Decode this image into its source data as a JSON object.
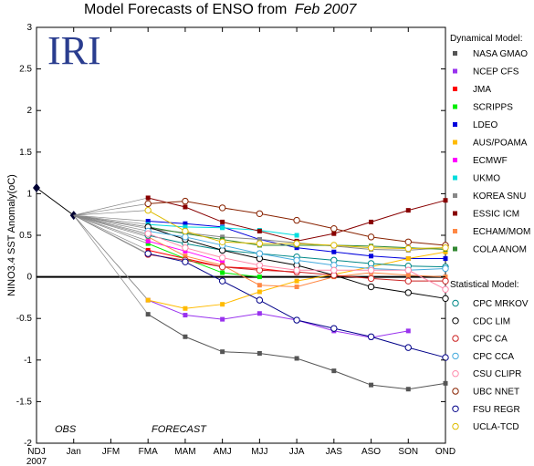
{
  "chart_data": {
    "type": "line",
    "title": "Model Forecasts of ENSO from",
    "title_date": "Feb 2007",
    "logo": "IRI",
    "ylabel": "NINO3.4 SST Anomaly(",
    "ylabel_unit": "oC",
    "ylabel_close": ")",
    "ylim": [
      -2,
      3
    ],
    "yticks": [
      "-2",
      "-1.5",
      "-1",
      "-0.5",
      "0",
      "0.5",
      "1",
      "1.5",
      "2",
      "2.5",
      "3"
    ],
    "ytick_values": [
      -2,
      -1.5,
      -1,
      -0.5,
      0,
      0.5,
      1,
      1.5,
      2,
      2.5,
      3
    ],
    "categories": [
      "NDJ",
      "Jan",
      "JFM",
      "FMA",
      "MAM",
      "AMJ",
      "MJJ",
      "JJA",
      "JAS",
      "ASO",
      "SON",
      "OND"
    ],
    "year_label": "2007",
    "obs_label": "OBS",
    "forecast_label": "FORECAST",
    "observed": [
      1.07,
      0.74
    ],
    "dynamical_header": "Dynamical Model:",
    "statistical_header": "Statistical Model:",
    "dynamical_models": [
      {
        "name": "NASA GMAO",
        "color": "#555555",
        "values": [
          -0.45,
          -0.72,
          -0.9,
          -0.92,
          -0.98,
          -1.13,
          -1.3,
          -1.35,
          -1.28
        ]
      },
      {
        "name": "NCEP CFS",
        "color": "#9933ee",
        "values": [
          -0.28,
          -0.46,
          -0.51,
          -0.44,
          -0.52,
          -0.65,
          -0.73,
          -0.65,
          null
        ]
      },
      {
        "name": "JMA",
        "color": "#ff0000",
        "values": [
          0.32,
          0.22,
          0.12,
          0.1,
          0.05,
          null,
          null,
          null,
          null
        ]
      },
      {
        "name": "SCRIPPS",
        "color": "#00ee00",
        "values": [
          0.4,
          0.22,
          0.05,
          0.0,
          null,
          null,
          null,
          null,
          null
        ]
      },
      {
        "name": "LDEO",
        "color": "#0000dd",
        "values": [
          0.67,
          0.64,
          0.6,
          0.45,
          0.35,
          0.3,
          0.25,
          0.22,
          0.22
        ]
      },
      {
        "name": "AUS/POAMA",
        "color": "#ffbb00",
        "values": [
          -0.28,
          -0.38,
          -0.33,
          -0.18,
          -0.05,
          0.03,
          0.12,
          0.22,
          0.3
        ]
      },
      {
        "name": "ECMWF",
        "color": "#ff00ff",
        "values": [
          0.43,
          0.31,
          0.18,
          null,
          null,
          null,
          null,
          null,
          null
        ]
      },
      {
        "name": "UKMO",
        "color": "#00dddd",
        "values": [
          0.63,
          0.6,
          0.59,
          0.56,
          0.5,
          null,
          null,
          null,
          null
        ]
      },
      {
        "name": "KOREA SNU",
        "color": "#888888",
        "values": [
          0.58,
          0.53,
          0.48,
          0.45,
          0.41,
          0.37,
          0.33,
          0.32,
          0.35
        ]
      },
      {
        "name": "ESSIC ICM",
        "color": "#880000",
        "values": [
          0.95,
          0.84,
          0.66,
          0.55,
          0.43,
          0.52,
          0.66,
          0.8,
          0.92
        ]
      },
      {
        "name": "ECHAM/MOM",
        "color": "#ff8844",
        "values": [
          0.48,
          0.25,
          0.14,
          -0.1,
          -0.12,
          0.0,
          0.05,
          0.02,
          0.0
        ]
      },
      {
        "name": "COLA ANOM",
        "color": "#338833",
        "values": [
          0.6,
          0.52,
          0.45,
          0.38,
          0.38,
          0.38,
          0.37,
          0.35,
          0.33
        ]
      }
    ],
    "statistical_models": [
      {
        "name": "CPC MRKOV",
        "color": "#008888",
        "values": [
          0.5,
          0.4,
          0.32,
          0.28,
          0.24,
          0.2,
          0.16,
          0.13,
          0.12
        ]
      },
      {
        "name": "CDC LIM",
        "color": "#000000",
        "values": [
          0.6,
          0.45,
          0.32,
          0.22,
          0.14,
          0.02,
          -0.12,
          -0.19,
          -0.26
        ]
      },
      {
        "name": "CPC CA",
        "color": "#cc2222",
        "values": [
          0.27,
          0.2,
          0.12,
          0.08,
          0.06,
          0.02,
          -0.02,
          -0.05,
          -0.05
        ]
      },
      {
        "name": "CPC CCA",
        "color": "#44aadd",
        "values": [
          0.55,
          0.48,
          0.38,
          0.28,
          0.2,
          0.14,
          0.1,
          0.08,
          0.1
        ]
      },
      {
        "name": "CSU CLIPR",
        "color": "#ff88aa",
        "values": [
          0.52,
          0.35,
          0.23,
          0.14,
          0.08,
          0.08,
          0.08,
          0.08,
          -0.15
        ]
      },
      {
        "name": "UBC NNET",
        "color": "#882200",
        "values": [
          0.88,
          0.91,
          0.83,
          0.76,
          0.68,
          0.58,
          0.48,
          0.42,
          0.38
        ]
      },
      {
        "name": "FSU REGR",
        "color": "#000088",
        "values": [
          0.28,
          0.18,
          -0.05,
          -0.28,
          -0.52,
          -0.62,
          -0.72,
          -0.85,
          -0.97
        ]
      },
      {
        "name": "UCLA-TCD",
        "color": "#ddbb00",
        "values": [
          0.8,
          0.55,
          0.42,
          0.4,
          0.4,
          0.38,
          0.35,
          0.34,
          0.35
        ]
      }
    ]
  }
}
